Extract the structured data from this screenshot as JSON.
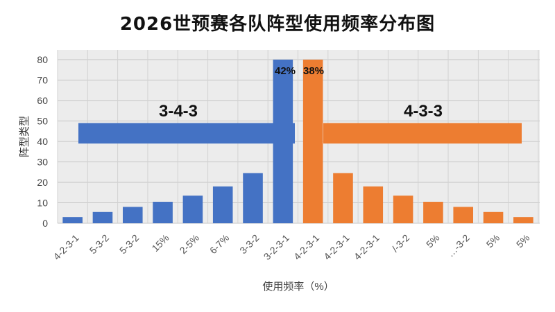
{
  "chart_data": {
    "type": "bar",
    "title": "2026世预赛各队阵型使用频率分布图",
    "xlabel": "使用频率（%）",
    "ylabel": "阵型类型",
    "ylim": [
      0,
      80
    ],
    "yticks": [
      0,
      10,
      20,
      30,
      40,
      50,
      60,
      70,
      80
    ],
    "grid": true,
    "categories": [
      "4-2-3-1",
      "5-3-2",
      "5-3-2",
      "15%",
      "2-5%",
      "6-7%",
      "3-3-2",
      "3-2-3-1",
      "4-2-3-1",
      "4-2-3-1",
      "4-2-3-1",
      "/-3-2",
      "5%",
      "…-3-2",
      "5%",
      "5%"
    ],
    "series": [
      {
        "name": "3-4-3",
        "color": "#4472C4",
        "values": [
          3,
          5.5,
          8,
          10.5,
          13.5,
          18,
          24.5,
          80,
          null,
          null,
          null,
          null,
          null,
          null,
          null,
          null
        ]
      },
      {
        "name": "4-3-3",
        "color": "#ED7D31",
        "values": [
          null,
          null,
          null,
          null,
          null,
          null,
          null,
          null,
          80,
          24.5,
          18,
          13.5,
          10.5,
          8,
          5.5,
          3
        ]
      }
    ],
    "annotations": [
      "42%",
      "38%"
    ],
    "group_labels": [
      {
        "name": "3-4-3",
        "color": "#4472C4",
        "y": 44
      },
      {
        "name": "4-3-3",
        "color": "#ED7D31",
        "y": 44
      }
    ]
  }
}
